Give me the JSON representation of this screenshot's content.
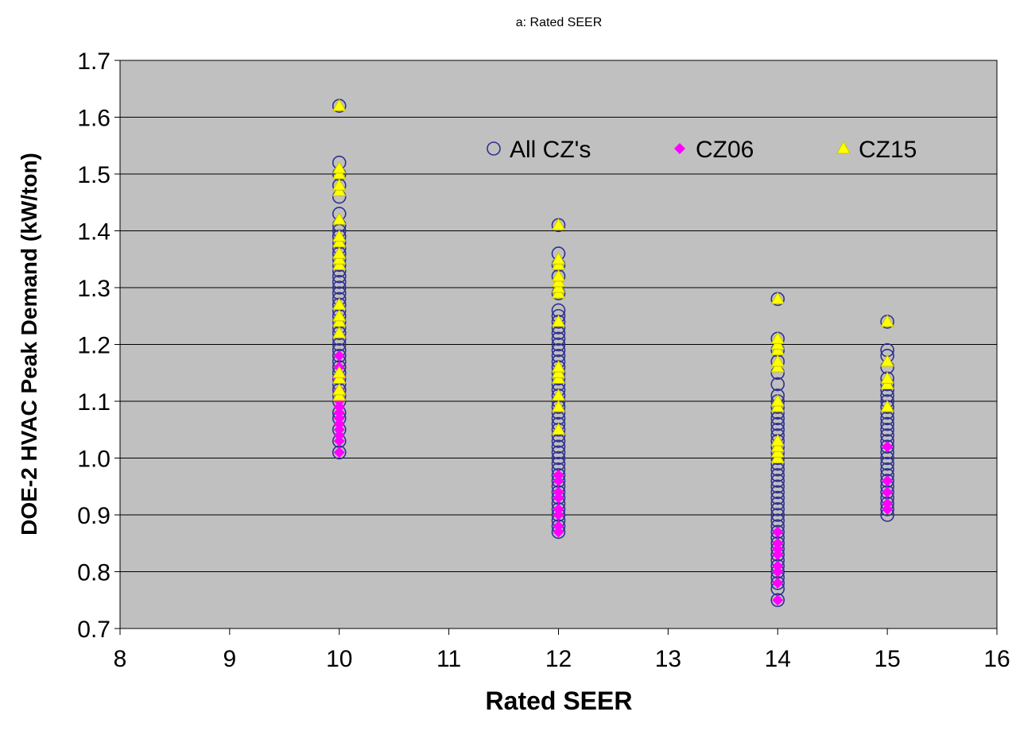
{
  "chart_data": {
    "type": "scatter",
    "title": "a: Rated SEER",
    "xlabel": "Rated SEER",
    "ylabel": "DOE-2 HVAC Peak Demand (kW/ton)",
    "xlim": [
      8,
      16
    ],
    "ylim": [
      0.7,
      1.7
    ],
    "xticks": [
      "8",
      "9",
      "10",
      "11",
      "12",
      "13",
      "14",
      "15",
      "16"
    ],
    "yticks": [
      "0.7",
      "0.8",
      "0.9",
      "1.0",
      "1.1",
      "1.2",
      "1.3",
      "1.4",
      "1.5",
      "1.6",
      "1.7"
    ],
    "grid": "horizontal",
    "legend_position": "top-right inside plot",
    "colors": {
      "plot_background": "#c0c0c0",
      "gridline": "#000000",
      "all_cz": "#2f2f8f",
      "cz06": "#ff00ff",
      "cz15": "#ffff00",
      "cz15_outline": "#c8c800"
    },
    "series": [
      {
        "name": "All CZ's",
        "marker": "circle-open",
        "points": [
          [
            10,
            1.01
          ],
          [
            10,
            1.03
          ],
          [
            10,
            1.05
          ],
          [
            10,
            1.07
          ],
          [
            10,
            1.08
          ],
          [
            10,
            1.1
          ],
          [
            10,
            1.11
          ],
          [
            10,
            1.12
          ],
          [
            10,
            1.13
          ],
          [
            10,
            1.14
          ],
          [
            10,
            1.15
          ],
          [
            10,
            1.16
          ],
          [
            10,
            1.17
          ],
          [
            10,
            1.18
          ],
          [
            10,
            1.19
          ],
          [
            10,
            1.2
          ],
          [
            10,
            1.21
          ],
          [
            10,
            1.22
          ],
          [
            10,
            1.23
          ],
          [
            10,
            1.24
          ],
          [
            10,
            1.25
          ],
          [
            10,
            1.26
          ],
          [
            10,
            1.27
          ],
          [
            10,
            1.28
          ],
          [
            10,
            1.29
          ],
          [
            10,
            1.3
          ],
          [
            10,
            1.31
          ],
          [
            10,
            1.32
          ],
          [
            10,
            1.33
          ],
          [
            10,
            1.34
          ],
          [
            10,
            1.35
          ],
          [
            10,
            1.36
          ],
          [
            10,
            1.37
          ],
          [
            10,
            1.38
          ],
          [
            10,
            1.39
          ],
          [
            10,
            1.4
          ],
          [
            10,
            1.41
          ],
          [
            10,
            1.43
          ],
          [
            10,
            1.46
          ],
          [
            10,
            1.48
          ],
          [
            10,
            1.5
          ],
          [
            10,
            1.52
          ],
          [
            10,
            1.62
          ],
          [
            12,
            0.87
          ],
          [
            12,
            0.88
          ],
          [
            12,
            0.89
          ],
          [
            12,
            0.9
          ],
          [
            12,
            0.91
          ],
          [
            12,
            0.92
          ],
          [
            12,
            0.93
          ],
          [
            12,
            0.94
          ],
          [
            12,
            0.95
          ],
          [
            12,
            0.96
          ],
          [
            12,
            0.97
          ],
          [
            12,
            0.98
          ],
          [
            12,
            0.99
          ],
          [
            12,
            1.0
          ],
          [
            12,
            1.01
          ],
          [
            12,
            1.02
          ],
          [
            12,
            1.03
          ],
          [
            12,
            1.04
          ],
          [
            12,
            1.05
          ],
          [
            12,
            1.06
          ],
          [
            12,
            1.07
          ],
          [
            12,
            1.08
          ],
          [
            12,
            1.09
          ],
          [
            12,
            1.1
          ],
          [
            12,
            1.11
          ],
          [
            12,
            1.12
          ],
          [
            12,
            1.13
          ],
          [
            12,
            1.14
          ],
          [
            12,
            1.15
          ],
          [
            12,
            1.16
          ],
          [
            12,
            1.17
          ],
          [
            12,
            1.18
          ],
          [
            12,
            1.19
          ],
          [
            12,
            1.2
          ],
          [
            12,
            1.21
          ],
          [
            12,
            1.22
          ],
          [
            12,
            1.23
          ],
          [
            12,
            1.24
          ],
          [
            12,
            1.25
          ],
          [
            12,
            1.26
          ],
          [
            12,
            1.29
          ],
          [
            12,
            1.32
          ],
          [
            12,
            1.34
          ],
          [
            12,
            1.36
          ],
          [
            12,
            1.41
          ],
          [
            14,
            0.75
          ],
          [
            14,
            0.77
          ],
          [
            14,
            0.78
          ],
          [
            14,
            0.79
          ],
          [
            14,
            0.8
          ],
          [
            14,
            0.81
          ],
          [
            14,
            0.82
          ],
          [
            14,
            0.83
          ],
          [
            14,
            0.84
          ],
          [
            14,
            0.85
          ],
          [
            14,
            0.86
          ],
          [
            14,
            0.87
          ],
          [
            14,
            0.88
          ],
          [
            14,
            0.89
          ],
          [
            14,
            0.9
          ],
          [
            14,
            0.91
          ],
          [
            14,
            0.92
          ],
          [
            14,
            0.93
          ],
          [
            14,
            0.94
          ],
          [
            14,
            0.95
          ],
          [
            14,
            0.96
          ],
          [
            14,
            0.97
          ],
          [
            14,
            0.98
          ],
          [
            14,
            0.99
          ],
          [
            14,
            1.0
          ],
          [
            14,
            1.01
          ],
          [
            14,
            1.02
          ],
          [
            14,
            1.03
          ],
          [
            14,
            1.04
          ],
          [
            14,
            1.05
          ],
          [
            14,
            1.06
          ],
          [
            14,
            1.07
          ],
          [
            14,
            1.08
          ],
          [
            14,
            1.09
          ],
          [
            14,
            1.1
          ],
          [
            14,
            1.11
          ],
          [
            14,
            1.13
          ],
          [
            14,
            1.15
          ],
          [
            14,
            1.17
          ],
          [
            14,
            1.19
          ],
          [
            14,
            1.21
          ],
          [
            14,
            1.28
          ],
          [
            15,
            0.9
          ],
          [
            15,
            0.91
          ],
          [
            15,
            0.92
          ],
          [
            15,
            0.93
          ],
          [
            15,
            0.94
          ],
          [
            15,
            0.95
          ],
          [
            15,
            0.96
          ],
          [
            15,
            0.97
          ],
          [
            15,
            0.98
          ],
          [
            15,
            0.99
          ],
          [
            15,
            1.0
          ],
          [
            15,
            1.01
          ],
          [
            15,
            1.02
          ],
          [
            15,
            1.03
          ],
          [
            15,
            1.04
          ],
          [
            15,
            1.05
          ],
          [
            15,
            1.06
          ],
          [
            15,
            1.07
          ],
          [
            15,
            1.08
          ],
          [
            15,
            1.09
          ],
          [
            15,
            1.1
          ],
          [
            15,
            1.11
          ],
          [
            15,
            1.12
          ],
          [
            15,
            1.13
          ],
          [
            15,
            1.14
          ],
          [
            15,
            1.16
          ],
          [
            15,
            1.18
          ],
          [
            15,
            1.19
          ],
          [
            15,
            1.24
          ]
        ]
      },
      {
        "name": "CZ06",
        "marker": "diamond-filled",
        "points": [
          [
            10,
            1.01
          ],
          [
            10,
            1.03
          ],
          [
            10,
            1.04
          ],
          [
            10,
            1.05
          ],
          [
            10,
            1.06
          ],
          [
            10,
            1.07
          ],
          [
            10,
            1.08
          ],
          [
            10,
            1.09
          ],
          [
            10,
            1.1
          ],
          [
            10,
            1.12
          ],
          [
            10,
            1.14
          ],
          [
            10,
            1.16
          ],
          [
            10,
            1.18
          ],
          [
            12,
            0.87
          ],
          [
            12,
            0.88
          ],
          [
            12,
            0.9
          ],
          [
            12,
            0.91
          ],
          [
            12,
            0.93
          ],
          [
            12,
            0.94
          ],
          [
            12,
            0.96
          ],
          [
            12,
            0.97
          ],
          [
            14,
            0.75
          ],
          [
            14,
            0.78
          ],
          [
            14,
            0.8
          ],
          [
            14,
            0.81
          ],
          [
            14,
            0.83
          ],
          [
            14,
            0.84
          ],
          [
            14,
            0.85
          ],
          [
            14,
            0.87
          ],
          [
            15,
            0.91
          ],
          [
            15,
            0.92
          ],
          [
            15,
            0.94
          ],
          [
            15,
            0.96
          ],
          [
            15,
            1.02
          ]
        ]
      },
      {
        "name": "CZ15",
        "marker": "triangle-filled",
        "points": [
          [
            10,
            1.11
          ],
          [
            10,
            1.12
          ],
          [
            10,
            1.14
          ],
          [
            10,
            1.15
          ],
          [
            10,
            1.22
          ],
          [
            10,
            1.24
          ],
          [
            10,
            1.25
          ],
          [
            10,
            1.27
          ],
          [
            10,
            1.34
          ],
          [
            10,
            1.35
          ],
          [
            10,
            1.36
          ],
          [
            10,
            1.38
          ],
          [
            10,
            1.39
          ],
          [
            10,
            1.42
          ],
          [
            10,
            1.47
          ],
          [
            10,
            1.48
          ],
          [
            10,
            1.5
          ],
          [
            10,
            1.51
          ],
          [
            10,
            1.62
          ],
          [
            12,
            1.05
          ],
          [
            12,
            1.09
          ],
          [
            12,
            1.11
          ],
          [
            12,
            1.14
          ],
          [
            12,
            1.15
          ],
          [
            12,
            1.16
          ],
          [
            12,
            1.24
          ],
          [
            12,
            1.29
          ],
          [
            12,
            1.3
          ],
          [
            12,
            1.31
          ],
          [
            12,
            1.32
          ],
          [
            12,
            1.34
          ],
          [
            12,
            1.35
          ],
          [
            12,
            1.41
          ],
          [
            14,
            1.0
          ],
          [
            14,
            1.01
          ],
          [
            14,
            1.02
          ],
          [
            14,
            1.03
          ],
          [
            14,
            1.09
          ],
          [
            14,
            1.1
          ],
          [
            14,
            1.16
          ],
          [
            14,
            1.17
          ],
          [
            14,
            1.19
          ],
          [
            14,
            1.2
          ],
          [
            14,
            1.21
          ],
          [
            14,
            1.28
          ],
          [
            15,
            1.09
          ],
          [
            15,
            1.13
          ],
          [
            15,
            1.14
          ],
          [
            15,
            1.17
          ],
          [
            15,
            1.24
          ]
        ]
      }
    ]
  }
}
